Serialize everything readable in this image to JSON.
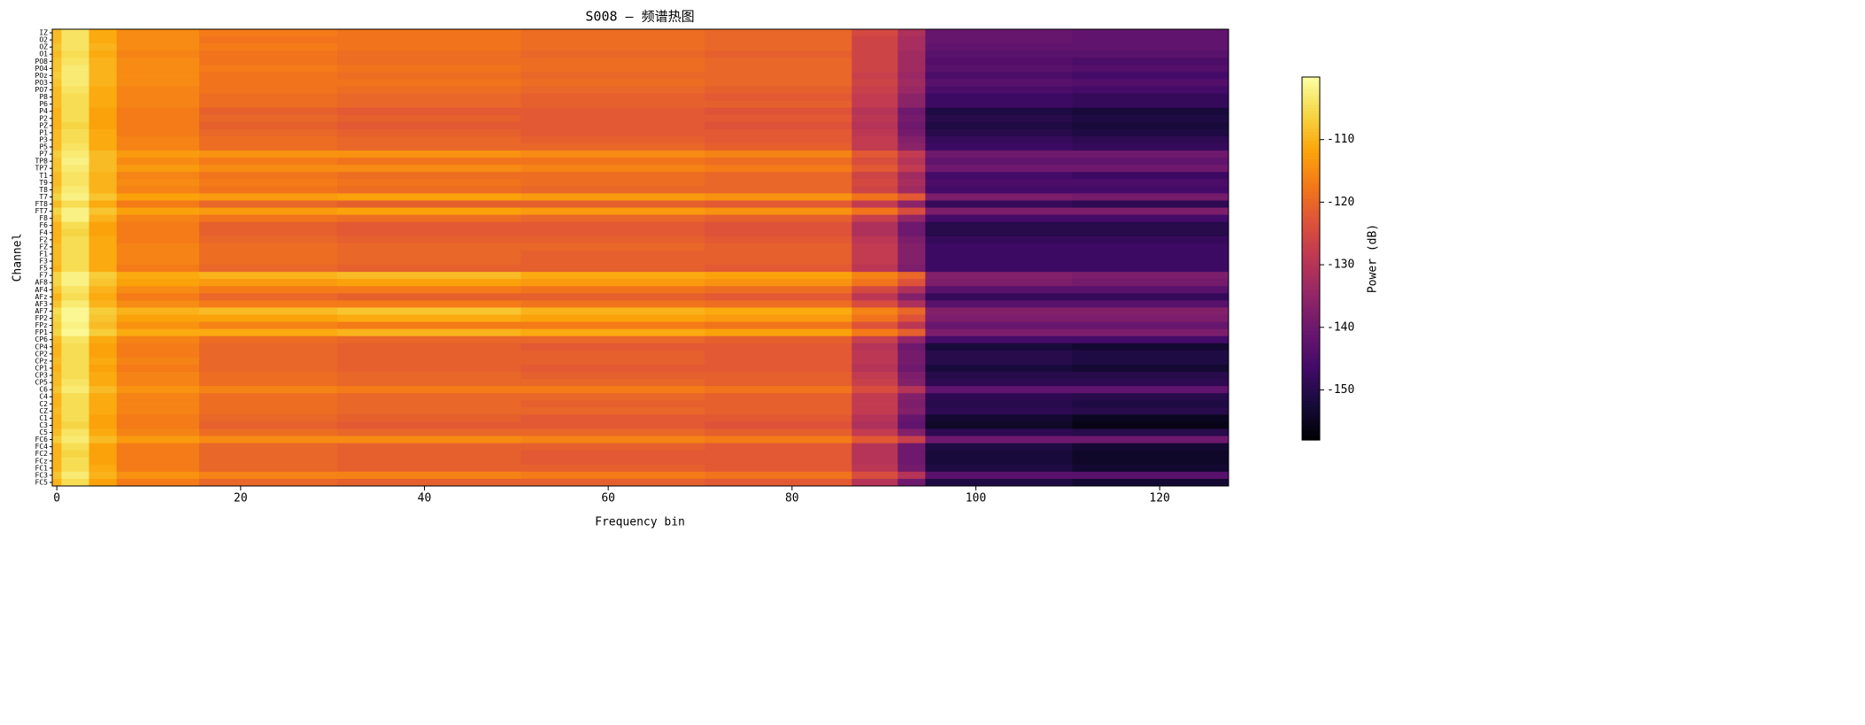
{
  "chart_data": {
    "type": "heatmap",
    "title": "S008 — 频谱热图",
    "xlabel": "Frequency bin",
    "ylabel": "Channel",
    "colormap": "inferno",
    "x": [
      -0.5,
      0.5,
      3.5,
      6.5,
      15.5,
      30.5,
      50.5,
      70.5,
      86.5,
      91.5,
      94.5,
      110.5,
      127.5
    ],
    "xlim": [
      -0.5,
      127.5
    ],
    "xticks": [
      0,
      20,
      40,
      60,
      80,
      100,
      120
    ],
    "categories": [
      "IZ",
      "O2",
      "OZ",
      "O1",
      "PO8",
      "PO4",
      "POz",
      "PO3",
      "PO7",
      "P8",
      "P6",
      "P4",
      "P2",
      "PZ",
      "P1",
      "P3",
      "P5",
      "P7",
      "TP8",
      "TP7",
      "T1",
      "T9",
      "T8",
      "T7",
      "FT8",
      "FT7",
      "F8",
      "F6",
      "F4",
      "F2",
      "FZ",
      "F1",
      "F3",
      "F5",
      "F7",
      "AF8",
      "AF4",
      "AFz",
      "AF3",
      "AF7",
      "FP2",
      "FPz",
      "FP1",
      "CP6",
      "CP4",
      "CP2",
      "CPz",
      "CP1",
      "CP3",
      "CP5",
      "C6",
      "C4",
      "C2",
      "CZ",
      "C1",
      "C3",
      "C5",
      "FC6",
      "FC4",
      "FC2",
      "FCz",
      "FC1",
      "FC3",
      "FC5"
    ],
    "values": [
      [
        -109,
        -104,
        -111,
        -115,
        -117,
        -118,
        -119,
        -120,
        -125,
        -131,
        -141,
        -142
      ],
      [
        -109,
        -104,
        -111,
        -115,
        -118,
        -118,
        -119,
        -120,
        -126,
        -132,
        -141,
        -142
      ],
      [
        -108,
        -104,
        -110,
        -115,
        -117,
        -118,
        -119,
        -120,
        -126,
        -132,
        -142,
        -142
      ],
      [
        -109,
        -105,
        -111,
        -116,
        -118,
        -119,
        -120,
        -121,
        -126,
        -133,
        -143,
        -143
      ],
      [
        -108,
        -104,
        -110,
        -115,
        -118,
        -119,
        -119,
        -120,
        -126,
        -133,
        -144,
        -145
      ],
      [
        -108,
        -103,
        -110,
        -115,
        -117,
        -118,
        -119,
        -120,
        -126,
        -133,
        -143,
        -144
      ],
      [
        -107,
        -103,
        -110,
        -115,
        -118,
        -119,
        -120,
        -120,
        -127,
        -134,
        -145,
        -146
      ],
      [
        -108,
        -103,
        -110,
        -115,
        -118,
        -118,
        -119,
        -120,
        -126,
        -133,
        -143,
        -144
      ],
      [
        -109,
        -104,
        -111,
        -116,
        -118,
        -119,
        -120,
        -121,
        -127,
        -134,
        -145,
        -146
      ],
      [
        -109,
        -105,
        -111,
        -116,
        -119,
        -120,
        -121,
        -122,
        -128,
        -136,
        -147,
        -148
      ],
      [
        -109,
        -105,
        -111,
        -116,
        -119,
        -120,
        -121,
        -121,
        -128,
        -136,
        -147,
        -148
      ],
      [
        -110,
        -105,
        -112,
        -117,
        -121,
        -122,
        -122,
        -123,
        -130,
        -140,
        -151,
        -152
      ],
      [
        -110,
        -105,
        -112,
        -117,
        -120,
        -121,
        -122,
        -122,
        -129,
        -139,
        -150,
        -151
      ],
      [
        -110,
        -106,
        -112,
        -117,
        -121,
        -122,
        -122,
        -123,
        -130,
        -140,
        -151,
        -152
      ],
      [
        -109,
        -105,
        -111,
        -117,
        -120,
        -121,
        -122,
        -122,
        -129,
        -139,
        -150,
        -151
      ],
      [
        -109,
        -105,
        -111,
        -116,
        -119,
        -120,
        -121,
        -122,
        -128,
        -137,
        -148,
        -149
      ],
      [
        -109,
        -104,
        -111,
        -116,
        -119,
        -120,
        -120,
        -121,
        -128,
        -136,
        -147,
        -148
      ],
      [
        -107,
        -103,
        -109,
        -113,
        -114,
        -114,
        -115,
        -116,
        -122,
        -128,
        -140,
        -140
      ],
      [
        -108,
        -102,
        -109,
        -115,
        -117,
        -118,
        -118,
        -119,
        -124,
        -130,
        -142,
        -142
      ],
      [
        -108,
        -103,
        -109,
        -113,
        -115,
        -115,
        -116,
        -117,
        -122,
        -128,
        -140,
        -140
      ],
      [
        -109,
        -104,
        -110,
        -116,
        -118,
        -119,
        -119,
        -120,
        -126,
        -133,
        -146,
        -147
      ],
      [
        -109,
        -104,
        -110,
        -115,
        -117,
        -118,
        -119,
        -120,
        -125,
        -132,
        -145,
        -145
      ],
      [
        -108,
        -103,
        -110,
        -116,
        -118,
        -119,
        -120,
        -120,
        -126,
        -133,
        -146,
        -146
      ],
      [
        -106,
        -102,
        -108,
        -112,
        -113,
        -112,
        -113,
        -114,
        -118,
        -122,
        -138,
        -139
      ],
      [
        -109,
        -105,
        -111,
        -117,
        -120,
        -121,
        -121,
        -122,
        -128,
        -136,
        -148,
        -149
      ],
      [
        -106,
        -102,
        -108,
        -112,
        -113,
        -112,
        -113,
        -114,
        -118,
        -124,
        -138,
        -138
      ],
      [
        -108,
        -102,
        -110,
        -116,
        -118,
        -119,
        -120,
        -121,
        -127,
        -135,
        -146,
        -146
      ],
      [
        -110,
        -105,
        -112,
        -117,
        -121,
        -122,
        -122,
        -123,
        -131,
        -140,
        -150,
        -150
      ],
      [
        -110,
        -106,
        -112,
        -117,
        -121,
        -122,
        -122,
        -123,
        -131,
        -140,
        -150,
        -150
      ],
      [
        -110,
        -105,
        -111,
        -117,
        -120,
        -121,
        -121,
        -122,
        -129,
        -138,
        -148,
        -148
      ],
      [
        -109,
        -105,
        -111,
        -116,
        -119,
        -120,
        -120,
        -121,
        -128,
        -137,
        -147,
        -147
      ],
      [
        -109,
        -105,
        -111,
        -116,
        -119,
        -120,
        -121,
        -121,
        -128,
        -137,
        -147,
        -147
      ],
      [
        -109,
        -105,
        -111,
        -116,
        -119,
        -120,
        -121,
        -121,
        -128,
        -137,
        -147,
        -147
      ],
      [
        -110,
        -105,
        -111,
        -117,
        -120,
        -121,
        -121,
        -122,
        -129,
        -138,
        -147,
        -147
      ],
      [
        -106,
        -102,
        -107,
        -111,
        -110,
        -109,
        -111,
        -112,
        -116,
        -120,
        -137,
        -138
      ],
      [
        -106,
        -102,
        -108,
        -112,
        -113,
        -112,
        -113,
        -114,
        -118,
        -123,
        -138,
        -139
      ],
      [
        -108,
        -104,
        -110,
        -115,
        -117,
        -117,
        -118,
        -119,
        -125,
        -131,
        -143,
        -143
      ],
      [
        -110,
        -105,
        -111,
        -117,
        -120,
        -121,
        -121,
        -122,
        -129,
        -137,
        -148,
        -148
      ],
      [
        -108,
        -103,
        -110,
        -115,
        -117,
        -117,
        -118,
        -119,
        -124,
        -131,
        -143,
        -143
      ],
      [
        -105,
        -101,
        -107,
        -110,
        -109,
        -108,
        -110,
        -111,
        -116,
        -120,
        -137,
        -137
      ],
      [
        -106,
        -101,
        -108,
        -112,
        -112,
        -111,
        -112,
        -113,
        -118,
        -123,
        -138,
        -138
      ],
      [
        -107,
        -102,
        -109,
        -114,
        -116,
        -117,
        -117,
        -118,
        -123,
        -129,
        -141,
        -141
      ],
      [
        -106,
        -101,
        -107,
        -111,
        -111,
        -110,
        -111,
        -112,
        -117,
        -121,
        -138,
        -138
      ],
      [
        -109,
        -104,
        -111,
        -116,
        -119,
        -120,
        -120,
        -121,
        -127,
        -135,
        -146,
        -146
      ],
      [
        -110,
        -105,
        -112,
        -117,
        -120,
        -121,
        -122,
        -122,
        -130,
        -140,
        -152,
        -153
      ],
      [
        -110,
        -105,
        -112,
        -117,
        -120,
        -121,
        -121,
        -122,
        -129,
        -139,
        -150,
        -151
      ],
      [
        -109,
        -105,
        -111,
        -116,
        -120,
        -121,
        -121,
        -122,
        -129,
        -139,
        -150,
        -151
      ],
      [
        -110,
        -105,
        -112,
        -117,
        -120,
        -121,
        -122,
        -122,
        -130,
        -140,
        -152,
        -153
      ],
      [
        -109,
        -105,
        -111,
        -116,
        -119,
        -120,
        -121,
        -121,
        -128,
        -138,
        -150,
        -150
      ],
      [
        -109,
        -104,
        -111,
        -116,
        -119,
        -120,
        -120,
        -121,
        -127,
        -137,
        -149,
        -149
      ],
      [
        -108,
        -103,
        -109,
        -114,
        -116,
        -117,
        -117,
        -118,
        -124,
        -130,
        -142,
        -142
      ],
      [
        -110,
        -105,
        -111,
        -116,
        -119,
        -120,
        -120,
        -121,
        -128,
        -137,
        -149,
        -150
      ],
      [
        -110,
        -105,
        -111,
        -116,
        -119,
        -120,
        -121,
        -121,
        -128,
        -138,
        -150,
        -151
      ],
      [
        -109,
        -105,
        -111,
        -116,
        -119,
        -120,
        -120,
        -121,
        -128,
        -137,
        -149,
        -150
      ],
      [
        -110,
        -105,
        -112,
        -117,
        -120,
        -121,
        -122,
        -122,
        -130,
        -141,
        -153,
        -155
      ],
      [
        -110,
        -106,
        -112,
        -117,
        -121,
        -122,
        -122,
        -123,
        -131,
        -142,
        -154,
        -156
      ],
      [
        -109,
        -104,
        -111,
        -116,
        -119,
        -120,
        -120,
        -121,
        -128,
        -137,
        -149,
        -150
      ],
      [
        -107,
        -103,
        -109,
        -113,
        -115,
        -115,
        -116,
        -117,
        -122,
        -127,
        -140,
        -140
      ],
      [
        -110,
        -105,
        -112,
        -117,
        -120,
        -121,
        -121,
        -122,
        -130,
        -140,
        -151,
        -153
      ],
      [
        -110,
        -106,
        -112,
        -117,
        -120,
        -121,
        -122,
        -122,
        -130,
        -140,
        -152,
        -154
      ],
      [
        -110,
        -105,
        -112,
        -117,
        -120,
        -121,
        -122,
        -122,
        -130,
        -140,
        -152,
        -154
      ],
      [
        -110,
        -105,
        -111,
        -117,
        -120,
        -121,
        -121,
        -122,
        -129,
        -139,
        -151,
        -153
      ],
      [
        -108,
        -103,
        -110,
        -114,
        -116,
        -116,
        -117,
        -118,
        -124,
        -130,
        -143,
        -143
      ],
      [
        -110,
        -105,
        -112,
        -117,
        -120,
        -121,
        -121,
        -122,
        -130,
        -140,
        -151,
        -153
      ]
    ],
    "colorbar": {
      "label": "Power (dB)",
      "lim": [
        -158,
        -100
      ],
      "ticks": [
        -150,
        -140,
        -130,
        -120,
        -110
      ]
    }
  }
}
